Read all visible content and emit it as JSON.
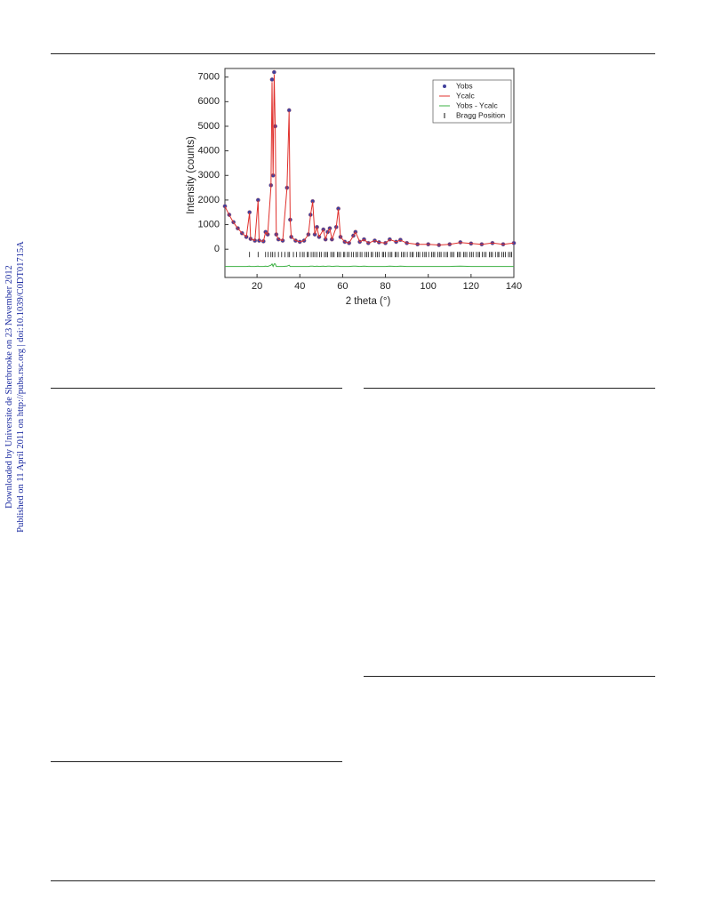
{
  "sidebar": {
    "downloaded": "Downloaded by Universite de Sherbrooke on 23 November 2012",
    "published": "Published on 11 April 2011 on http://pubs.rsc.org | doi:10.1039/C0DT01715A"
  },
  "chart_data": {
    "type": "line",
    "x_label": "2 theta (°)",
    "y_label": "Intensity (counts)",
    "xlim": [
      5,
      140
    ],
    "ylim": [
      -1150,
      7350
    ],
    "xticks": [
      20,
      40,
      60,
      80,
      100,
      120,
      140
    ],
    "yticks": [
      0,
      1000,
      2000,
      3000,
      4000,
      5000,
      6000,
      7000
    ],
    "legend": "upper right",
    "x": [
      5,
      7,
      9,
      11,
      13,
      15,
      16.5,
      17,
      19,
      20.5,
      21,
      23,
      24,
      25,
      26.5,
      27,
      27.5,
      28,
      28.5,
      29,
      30,
      32,
      34,
      35,
      35.5,
      36,
      38,
      40,
      42,
      44,
      45,
      46,
      47,
      48,
      49,
      51,
      52,
      53,
      54,
      55,
      57,
      58,
      59,
      61,
      63,
      65,
      66,
      68,
      70,
      72,
      75,
      77,
      80,
      82,
      85,
      87,
      90,
      95,
      100,
      105,
      110,
      115,
      120,
      125,
      130,
      135,
      140
    ],
    "series": [
      {
        "name": "Yobs",
        "color": "#3f3f9c",
        "values": [
          1750,
          1400,
          1100,
          850,
          650,
          500,
          1500,
          420,
          350,
          2000,
          350,
          320,
          700,
          600,
          2600,
          6900,
          3000,
          7200,
          5000,
          600,
          400,
          350,
          2500,
          5650,
          1200,
          500,
          350,
          300,
          350,
          600,
          1400,
          1950,
          600,
          900,
          500,
          800,
          400,
          700,
          850,
          400,
          900,
          1650,
          500,
          300,
          250,
          550,
          700,
          300,
          400,
          250,
          350,
          280,
          250,
          400,
          300,
          380,
          250,
          200,
          200,
          170,
          200,
          280,
          230,
          200,
          250,
          200,
          250
        ]
      },
      {
        "name": "Ycalc",
        "color": "#e0302c",
        "values": [
          1740,
          1390,
          1090,
          850,
          650,
          500,
          1480,
          420,
          350,
          1980,
          350,
          320,
          690,
          600,
          2550,
          6800,
          3000,
          7100,
          4900,
          600,
          400,
          350,
          2480,
          5600,
          1200,
          500,
          350,
          300,
          350,
          600,
          1380,
          1930,
          600,
          890,
          500,
          790,
          400,
          690,
          840,
          400,
          890,
          1630,
          500,
          300,
          250,
          540,
          690,
          300,
          390,
          250,
          350,
          280,
          250,
          390,
          300,
          370,
          250,
          200,
          200,
          170,
          200,
          270,
          230,
          200,
          250,
          200,
          250
        ]
      },
      {
        "name": "Yobs - Ycalc",
        "color": "#3cb043",
        "values": [
          -700,
          -700,
          -700,
          -700,
          -700,
          -700,
          -690,
          -700,
          -700,
          -690,
          -700,
          -700,
          -690,
          -700,
          -650,
          -600,
          -700,
          -600,
          -600,
          -700,
          -700,
          -700,
          -690,
          -650,
          -700,
          -700,
          -700,
          -700,
          -700,
          -700,
          -690,
          -690,
          -700,
          -690,
          -700,
          -690,
          -700,
          -690,
          -690,
          -700,
          -690,
          -690,
          -700,
          -700,
          -700,
          -690,
          -690,
          -700,
          -690,
          -700,
          -700,
          -700,
          -700,
          -690,
          -700,
          -690,
          -700,
          -700,
          -700,
          -700,
          -700,
          -690,
          -700,
          -700,
          -700,
          -700,
          -700
        ]
      }
    ],
    "bragg": {
      "name": "Bragg Position",
      "color": "#111",
      "positions": [
        16.5,
        20.5,
        24,
        25.2,
        26.5,
        27.3,
        28.3,
        30,
        31.5,
        33,
        34.5,
        35.2,
        37,
        38.5,
        40,
        41.2,
        42,
        43.5,
        44,
        45.3,
        46.2,
        47,
        48,
        49.2,
        50,
        51.5,
        52.3,
        53,
        54.5,
        55.3,
        56,
        57.5,
        58.2,
        59,
        60.4,
        61,
        62.2,
        63,
        64.1,
        65,
        66.3,
        67,
        68.2,
        69,
        70.5,
        71.3,
        72,
        73.4,
        74,
        75.5,
        76.2,
        77,
        78.6,
        79.2,
        80,
        81.4,
        82.3,
        83,
        84.5,
        85.1,
        86,
        87.5,
        88.3,
        89,
        90.2,
        91.5,
        92.4,
        93,
        94.6,
        95.3,
        96,
        97.5,
        98.4,
        99,
        100.2,
        101.6,
        102.3,
        103,
        104.5,
        105.4,
        106,
        107.3,
        108.4,
        109,
        110.5,
        111.2,
        112,
        113.6,
        114.3,
        115,
        116.5,
        117.2,
        118,
        119.4,
        120.2,
        121,
        122.5,
        123.4,
        124,
        125.3,
        126.2,
        127,
        128.6,
        129.3,
        130,
        131.4,
        132.5,
        133,
        134.4,
        135.2,
        136,
        137.5,
        138.3,
        139
      ]
    }
  }
}
